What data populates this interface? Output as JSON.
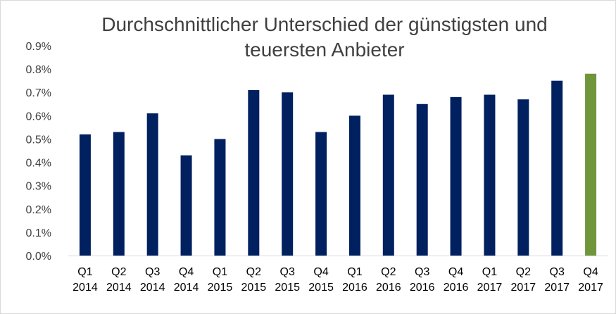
{
  "chart_data": {
    "type": "bar",
    "title": "Durchschnittlicher Unterschied der günstigsten und teuersten Anbieter",
    "categories": [
      [
        "Q1",
        "2014"
      ],
      [
        "Q2",
        "2014"
      ],
      [
        "Q3",
        "2014"
      ],
      [
        "Q4",
        "2014"
      ],
      [
        "Q1",
        "2015"
      ],
      [
        "Q2",
        "2015"
      ],
      [
        "Q3",
        "2015"
      ],
      [
        "Q4",
        "2015"
      ],
      [
        "Q1",
        "2016"
      ],
      [
        "Q2",
        "2016"
      ],
      [
        "Q3",
        "2016"
      ],
      [
        "Q4",
        "2016"
      ],
      [
        "Q1",
        "2017"
      ],
      [
        "Q2",
        "2017"
      ],
      [
        "Q3",
        "2017"
      ],
      [
        "Q4",
        "2017"
      ]
    ],
    "values": [
      0.52,
      0.53,
      0.61,
      0.43,
      0.5,
      0.71,
      0.7,
      0.53,
      0.6,
      0.69,
      0.65,
      0.68,
      0.69,
      0.67,
      0.75,
      0.78
    ],
    "ylim": [
      0,
      0.9
    ],
    "yticks": [
      "0.0%",
      "0.1%",
      "0.2%",
      "0.3%",
      "0.4%",
      "0.5%",
      "0.6%",
      "0.7%",
      "0.8%",
      "0.9%"
    ],
    "xlabel": "",
    "ylabel": "",
    "grid": false,
    "colors": {
      "bar": "#002060",
      "highlight": "#70963C",
      "axis": "#d9d9d9"
    },
    "highlight_index": 15
  }
}
